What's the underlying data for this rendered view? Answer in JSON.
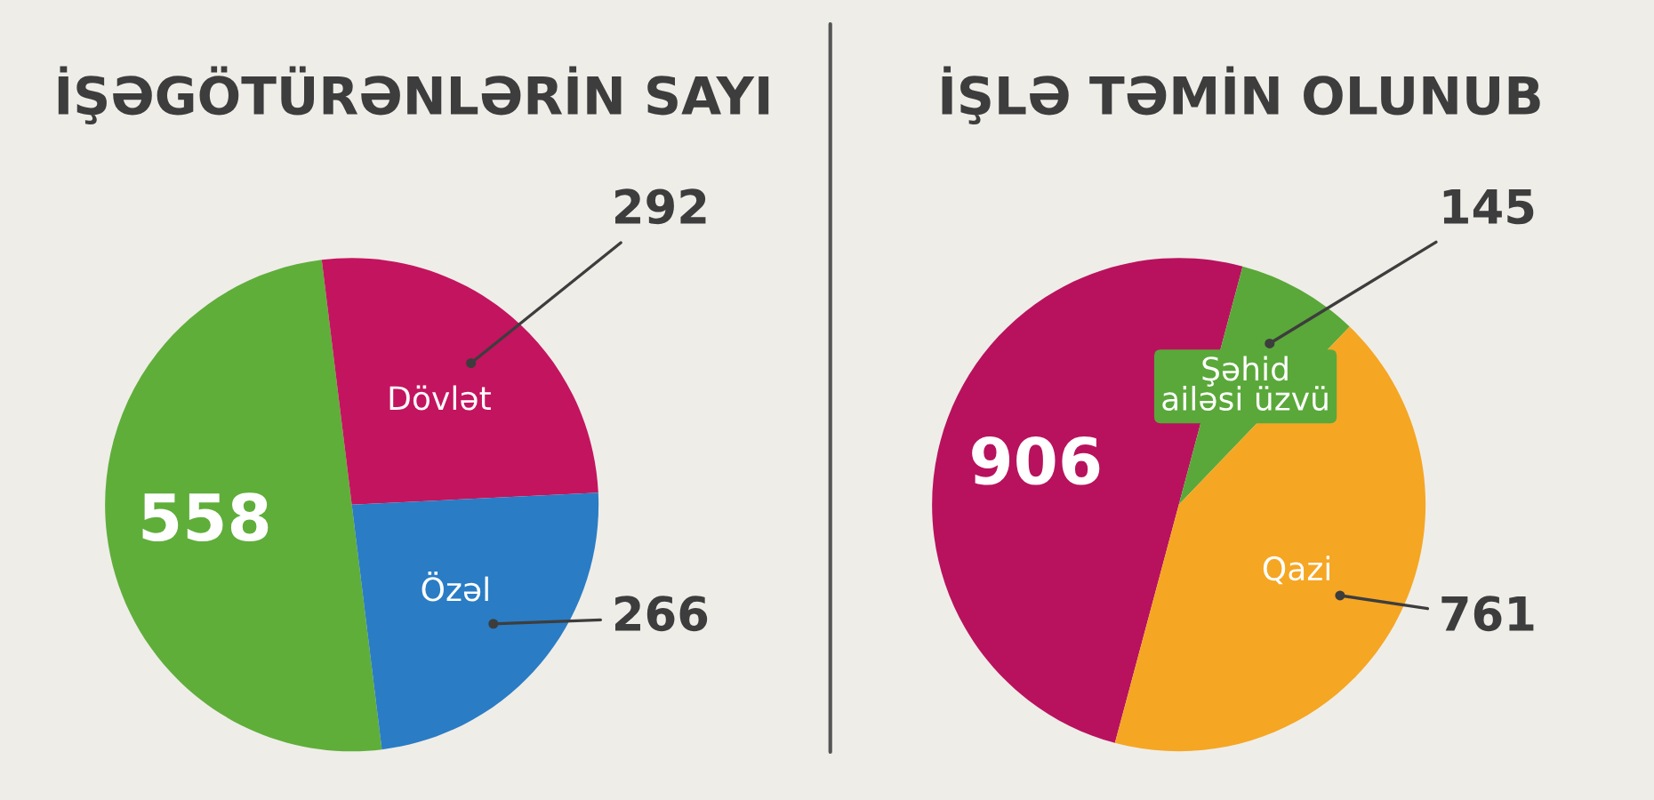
{
  "chart_data": [
    {
      "type": "pie",
      "title": "İŞƏGÖTÜRƏNLƏRİN SAYI",
      "categories": [
        null,
        "Dövlət",
        "Özəl"
      ],
      "values": [
        558,
        292,
        266
      ],
      "colors": [
        "#5fae3a",
        "#c3145f",
        "#2a7cc4"
      ],
      "data_labels": true
    },
    {
      "type": "pie",
      "title": "İŞLƏ TƏMİN OLUNUB",
      "categories": [
        null,
        "Şəhid\nailəsi üzvü",
        "Qazi"
      ],
      "values": [
        906,
        145,
        761
      ],
      "colors": [
        "#b8125e",
        "#5aa83a",
        "#f5a623"
      ],
      "data_labels": true
    }
  ]
}
